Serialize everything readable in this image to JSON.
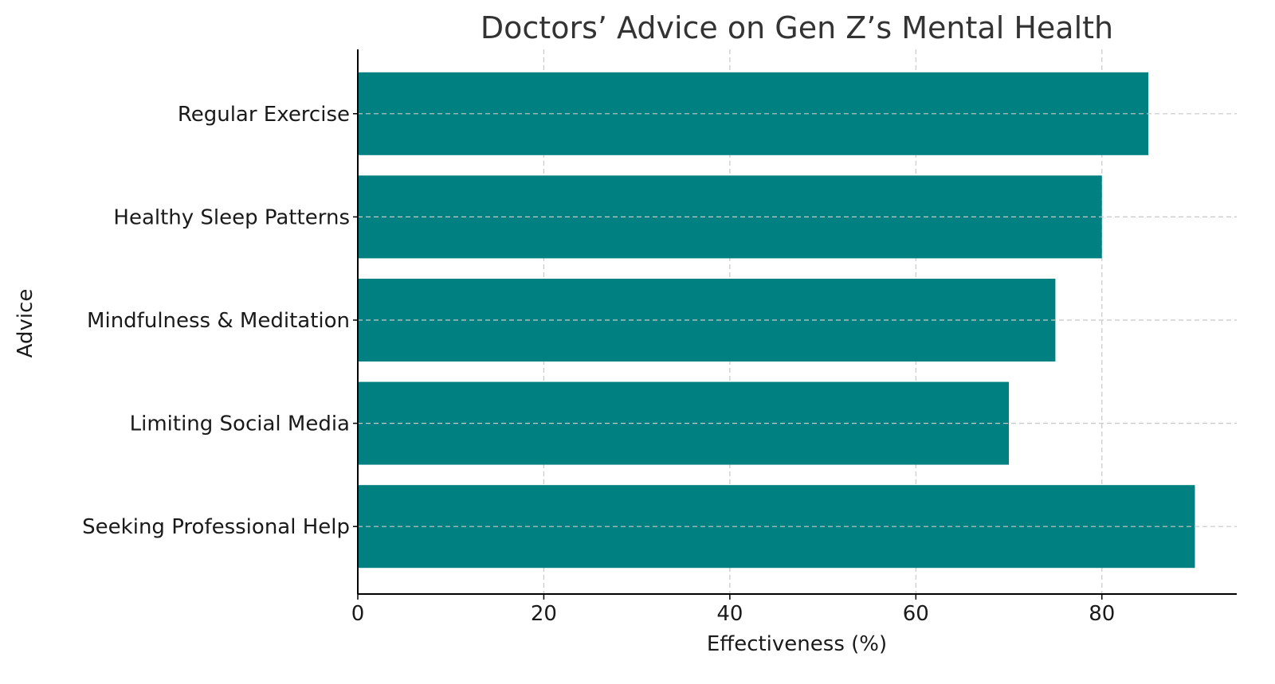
{
  "chart_data": {
    "type": "bar",
    "orientation": "horizontal",
    "title": "Doctors’ Advice on Gen Z’s Mental Health",
    "xlabel": "Effectiveness (%)",
    "ylabel": "Advice",
    "categories": [
      "Regular Exercise",
      "Healthy Sleep Patterns",
      "Mindfulness & Meditation",
      "Limiting Social Media",
      "Seeking Professional Help"
    ],
    "values": [
      85,
      80,
      75,
      70,
      90
    ],
    "xlim": [
      0,
      94.5
    ],
    "xticks": [
      0,
      20,
      40,
      60,
      80
    ],
    "grid": true,
    "bar_color": "#008080"
  }
}
